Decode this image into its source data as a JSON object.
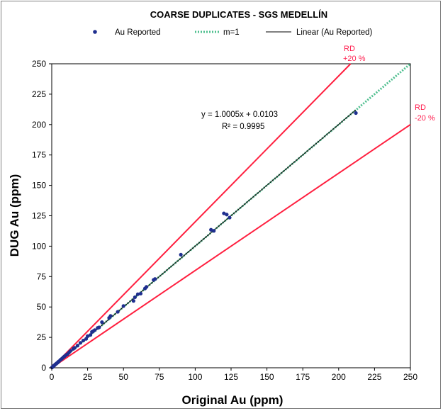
{
  "chart_data": {
    "type": "scatter",
    "title": "COARSE DUPLICATES - SGS MEDELLÍN",
    "xlabel": "Original Au (ppm)",
    "ylabel": "DUG  Au (ppm)",
    "xlim": [
      0,
      250
    ],
    "ylim": [
      0,
      250
    ],
    "x_ticks": [
      0,
      25,
      50,
      75,
      100,
      125,
      150,
      175,
      200,
      225,
      250
    ],
    "y_ticks": [
      0,
      25,
      50,
      75,
      100,
      125,
      150,
      175,
      200,
      225,
      250
    ],
    "grid": false,
    "legend": {
      "placement": "top",
      "entries": [
        "Au Reported",
        "m=1",
        "Linear (Au Reported)"
      ]
    },
    "series": [
      {
        "name": "Au Reported",
        "color": "#1f2f8f",
        "x": [
          0.2,
          0.5,
          0.8,
          1.0,
          1.3,
          1.6,
          2.0,
          2.5,
          3.0,
          3.5,
          4.0,
          4.5,
          5.0,
          6.0,
          7.0,
          8.0,
          9.0,
          10.0,
          11.0,
          12.0,
          13.0,
          15.0,
          16.0,
          18.0,
          20.0,
          22.0,
          24.0,
          25.0,
          27.0,
          28.0,
          29.0,
          30.0,
          32.0,
          33.0,
          35.0,
          40.0,
          41.0,
          46.0,
          50.0,
          57.0,
          58.0,
          60.0,
          62.0,
          65.0,
          66.0,
          71.0,
          72.0,
          90.0,
          111.0,
          113.0,
          120.0,
          122.0,
          124.0,
          212.0
        ],
        "y": [
          0.3,
          0.6,
          0.9,
          1.1,
          1.5,
          1.8,
          2.2,
          2.8,
          3.2,
          3.7,
          4.2,
          4.8,
          5.3,
          6.5,
          7.4,
          8.6,
          9.5,
          10.5,
          11.2,
          12.5,
          13.8,
          15.6,
          16.4,
          18.2,
          20.5,
          22.4,
          23.8,
          26.0,
          27.0,
          29.5,
          30.2,
          31.0,
          32.8,
          33.2,
          37.5,
          41.0,
          42.6,
          46.0,
          50.8,
          55.0,
          58.0,
          60.5,
          61.0,
          65.2,
          66.5,
          72.3,
          73.0,
          93.0,
          113.5,
          112.6,
          127.0,
          126.0,
          123.5,
          209.5
        ]
      }
    ],
    "fit": {
      "name": "Linear (Au Reported)",
      "slope": 1.0005,
      "intercept": 0.0103,
      "equation": "y = 1.0005x + 0.0103",
      "r2_label": "R² = 0.9995",
      "color": "#000000"
    },
    "reference_lines": [
      {
        "name": "m=1",
        "slope": 1.0,
        "color": "#4fbf8f",
        "style": "dotted"
      },
      {
        "name": "RD +20 %",
        "label_line1": "RD",
        "label_line2": "+20 %",
        "slope": 1.2,
        "color": "#ff1f3f"
      },
      {
        "name": "RD -20 %",
        "label_line1": "RD",
        "label_line2": "-20 %",
        "slope": 0.8,
        "color": "#ff1f3f"
      }
    ]
  }
}
